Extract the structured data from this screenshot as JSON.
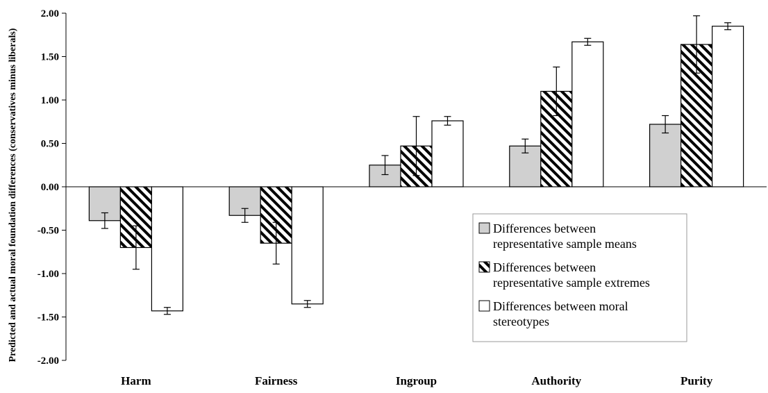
{
  "chart_data": {
    "type": "bar",
    "title": "",
    "xlabel": "",
    "ylabel": "Predicted and actual moral foundation differences (conservatives minus liberals)",
    "ylim": [
      -2.0,
      2.0
    ],
    "yticks": [
      "2.00",
      "1.50",
      "1.00",
      "0.50",
      "0.00",
      "-0.50",
      "-1.00",
      "-1.50",
      "-2.00"
    ],
    "categories": [
      "Harm",
      "Fairness",
      "Ingroup",
      "Authority",
      "Purity"
    ],
    "series": [
      {
        "name": "Differences between representative sample means",
        "legend_lines": [
          "Differences between",
          "representative sample means"
        ],
        "pattern": "solid-gray",
        "color": "#d0d0d0",
        "values": [
          -0.39,
          -0.33,
          0.25,
          0.47,
          0.72
        ],
        "error": [
          0.09,
          0.08,
          0.11,
          0.08,
          0.1
        ]
      },
      {
        "name": "Differences between representative sample extremes",
        "legend_lines": [
          "Differences between",
          "representative sample extremes"
        ],
        "pattern": "diagonal-hatch",
        "color": "#000000",
        "values": [
          -0.7,
          -0.65,
          0.47,
          1.1,
          1.64
        ],
        "error": [
          0.25,
          0.24,
          0.34,
          0.28,
          0.33
        ]
      },
      {
        "name": "Differences between moral stereotypes",
        "legend_lines": [
          "Differences between moral",
          "stereotypes"
        ],
        "pattern": "solid-white",
        "color": "#ffffff",
        "values": [
          -1.43,
          -1.35,
          0.76,
          1.67,
          1.85
        ],
        "error": [
          0.04,
          0.04,
          0.05,
          0.04,
          0.04
        ]
      }
    ],
    "legend_position": "lower-right",
    "grid": false
  }
}
